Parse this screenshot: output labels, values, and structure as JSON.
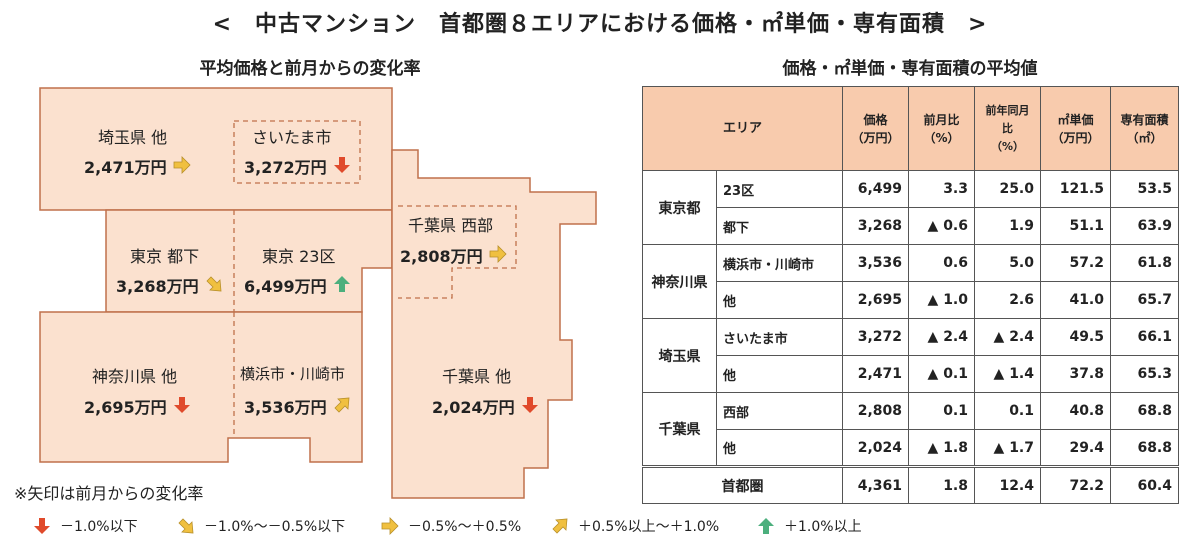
{
  "title": "<　中古マンション　首都圏８エリアにおける価格・㎡単価・専有面積　>",
  "map_title": "平均価格と前月からの変化率",
  "table_title": "価格・㎡単価・専有面積の平均値",
  "note": "※矢印は前月からの変化率",
  "colors": {
    "region_fill": "#fbe1cf",
    "region_stroke": "#c0714b",
    "header_fill": "#f8cbad",
    "arrow_down": "#e04a2b",
    "arrow_slight_down": "#f0c040",
    "arrow_flat": "#f0c040",
    "arrow_slight_up": "#f0c040",
    "arrow_up": "#4caf7d"
  },
  "chart_data": {
    "type": "table",
    "map": [
      {
        "id": "saitama-other",
        "label": "埼玉県 他",
        "price": "2,471万円",
        "trend": "flat",
        "trend_icon": "arrow-right-icon"
      },
      {
        "id": "saitama-city",
        "label": "さいたま市",
        "price": "3,272万円",
        "trend": "down",
        "trend_icon": "arrow-down-icon"
      },
      {
        "id": "tokyo-toka",
        "label": "東京 都下",
        "price": "3,268万円",
        "trend": "slight-down",
        "trend_icon": "arrow-down-right-icon"
      },
      {
        "id": "tokyo-23",
        "label": "東京 23区",
        "price": "6,499万円",
        "trend": "up",
        "trend_icon": "arrow-up-icon"
      },
      {
        "id": "chiba-west",
        "label": "千葉県 西部",
        "price": "2,808万円",
        "trend": "flat",
        "trend_icon": "arrow-right-icon"
      },
      {
        "id": "kanagawa-other",
        "label": "神奈川県 他",
        "price": "2,695万円",
        "trend": "down",
        "trend_icon": "arrow-down-icon"
      },
      {
        "id": "yokohama-kawasaki",
        "label": "横浜市・川崎市",
        "price": "3,536万円",
        "trend": "slight-up",
        "trend_icon": "arrow-up-right-icon"
      },
      {
        "id": "chiba-other",
        "label": "千葉県 他",
        "price": "2,024万円",
        "trend": "down",
        "trend_icon": "arrow-down-icon"
      }
    ],
    "legend": [
      {
        "label": "－1.0%以下",
        "trend": "down",
        "icon": "arrow-down-icon"
      },
      {
        "label": "－1.0%～－0.5%以下",
        "trend": "slight-down",
        "icon": "arrow-down-right-icon"
      },
      {
        "label": "－0.5%～＋0.5%",
        "trend": "flat",
        "icon": "arrow-right-icon"
      },
      {
        "label": "＋0.5%以上～＋1.0%",
        "trend": "slight-up",
        "icon": "arrow-up-right-icon"
      },
      {
        "label": "＋1.0%以上",
        "trend": "up",
        "icon": "arrow-up-icon"
      }
    ],
    "table": {
      "headers": {
        "area": "エリア",
        "price": [
          "価格",
          "（万円）"
        ],
        "mom": [
          "前月比",
          "（%）"
        ],
        "yoy": [
          "前年同月比",
          "（%）"
        ],
        "unit_price": [
          "㎡単価",
          "（万円）"
        ],
        "floor_area": [
          "専有面積",
          "（㎡）"
        ]
      },
      "groups": [
        {
          "name": "東京都",
          "rows": [
            {
              "sub": "23区",
              "price": "6,499",
              "mom": "3.3",
              "yoy": "25.0",
              "unit_price": "121.5",
              "floor_area": "53.5"
            },
            {
              "sub": "都下",
              "price": "3,268",
              "mom": "▲ 0.6",
              "yoy": "1.9",
              "unit_price": "51.1",
              "floor_area": "63.9"
            }
          ]
        },
        {
          "name": "神奈川県",
          "rows": [
            {
              "sub": "横浜市・川崎市",
              "price": "3,536",
              "mom": "0.6",
              "yoy": "5.0",
              "unit_price": "57.2",
              "floor_area": "61.8"
            },
            {
              "sub": "他",
              "price": "2,695",
              "mom": "▲ 1.0",
              "yoy": "2.6",
              "unit_price": "41.0",
              "floor_area": "65.7"
            }
          ]
        },
        {
          "name": "埼玉県",
          "rows": [
            {
              "sub": "さいたま市",
              "price": "3,272",
              "mom": "▲ 2.4",
              "yoy": "▲ 2.4",
              "unit_price": "49.5",
              "floor_area": "66.1"
            },
            {
              "sub": "他",
              "price": "2,471",
              "mom": "▲ 0.1",
              "yoy": "▲ 1.4",
              "unit_price": "37.8",
              "floor_area": "65.3"
            }
          ]
        },
        {
          "name": "千葉県",
          "rows": [
            {
              "sub": "西部",
              "price": "2,808",
              "mom": "0.1",
              "yoy": "0.1",
              "unit_price": "40.8",
              "floor_area": "68.8"
            },
            {
              "sub": "他",
              "price": "2,024",
              "mom": "▲ 1.8",
              "yoy": "▲ 1.7",
              "unit_price": "29.4",
              "floor_area": "68.8"
            }
          ]
        }
      ],
      "total": {
        "label": "首都圏",
        "price": "4,361",
        "mom": "1.8",
        "yoy": "12.4",
        "unit_price": "72.2",
        "floor_area": "60.4"
      }
    }
  }
}
